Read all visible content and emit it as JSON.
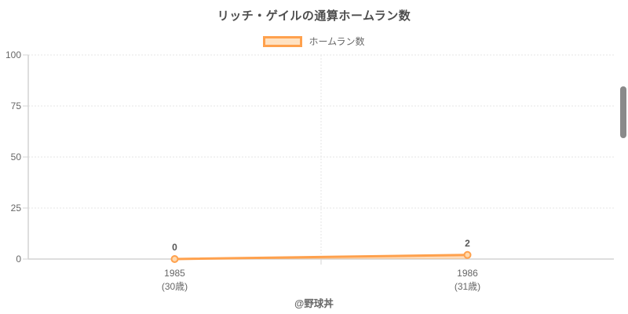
{
  "title": "リッチ・ゲイルの通算ホームラン数",
  "legend": {
    "label": "ホームラン数"
  },
  "footer": "@野球丼",
  "colors": {
    "line": "#ffa14d",
    "point_fill": "#ffd9ad",
    "area_fill": "rgba(255,159,64,0.35)",
    "grid": "#e5e5e5",
    "axis": "#d4d4d4",
    "tick_text": "#666666",
    "title_text": "#4d4d4d",
    "data_label": "#555555",
    "scrollbar": "#8a8a8a"
  },
  "chart_data": {
    "type": "line",
    "title": "リッチ・ゲイルの通算ホームラン数",
    "categories": [
      "1985",
      "1986"
    ],
    "category_sublabels": [
      "(30歳)",
      "(31歳)"
    ],
    "series": [
      {
        "name": "ホームラン数",
        "values": [
          0,
          2
        ]
      }
    ],
    "ylim": [
      0,
      100
    ],
    "yticks": [
      0,
      25,
      50,
      75,
      100
    ],
    "grid": true,
    "grid_style": "dashed",
    "legend_position": "top",
    "point_labels_shown": true,
    "area_fill": true
  }
}
